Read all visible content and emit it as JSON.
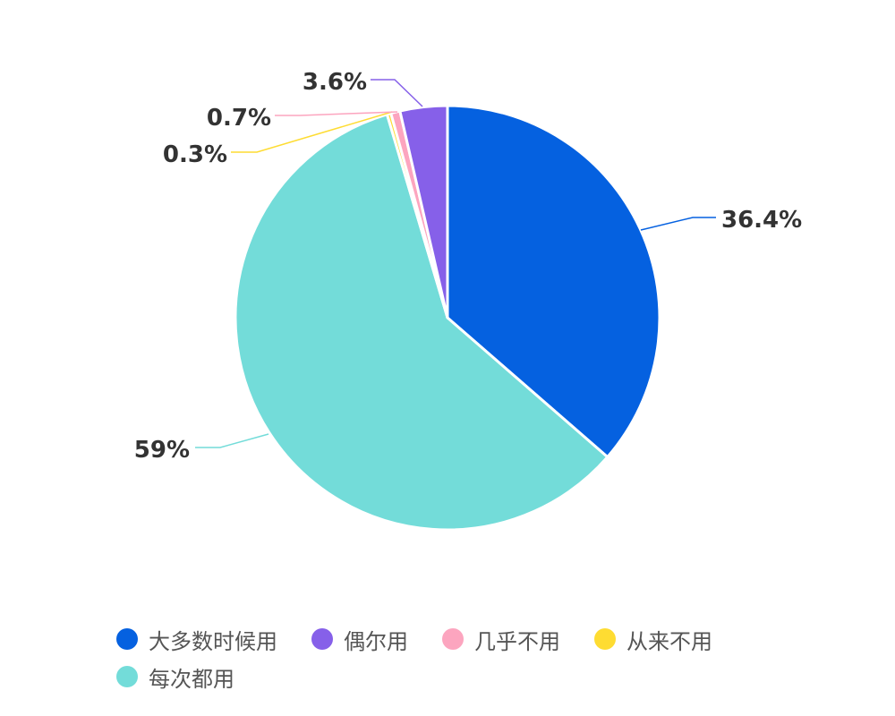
{
  "chart_data": {
    "type": "pie",
    "slices": [
      {
        "name": "大多数时候用",
        "value": 36.4,
        "label": "36.4%",
        "color": "#0561e0"
      },
      {
        "name": "每次都用",
        "value": 59,
        "label": "59%",
        "color": "#73dcd9"
      },
      {
        "name": "从来不用",
        "value": 0.3,
        "label": "0.3%",
        "color": "#fedc32"
      },
      {
        "name": "几乎不用",
        "value": 0.7,
        "label": "0.7%",
        "color": "#fca5bf"
      },
      {
        "name": "偶尔用",
        "value": 3.6,
        "label": "3.6%",
        "color": "#8660e9"
      }
    ],
    "legend": {
      "placement": "bottom",
      "items": [
        {
          "name": "大多数时候用",
          "color": "#0561e0"
        },
        {
          "name": "偶尔用",
          "color": "#8660e9"
        },
        {
          "name": "几乎不用",
          "color": "#fca5bf"
        },
        {
          "name": "从来不用",
          "color": "#fedc32"
        },
        {
          "name": "每次都用",
          "color": "#73dcd9"
        }
      ]
    }
  }
}
